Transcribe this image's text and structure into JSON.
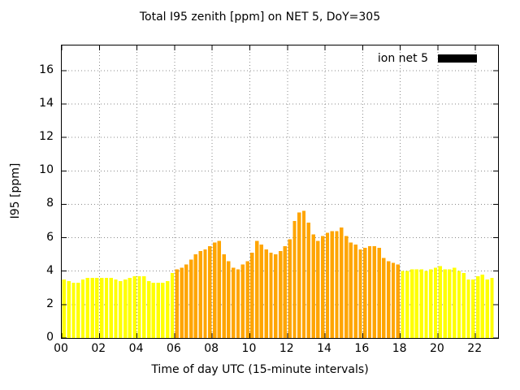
{
  "chart_data": {
    "type": "bar",
    "title": "Total I95 zenith [ppm] on NET 5, DoY=305",
    "xlabel": "Time of day UTC (15-minute intervals)",
    "ylabel": "I95 [ppm]",
    "xlim": [
      0,
      23.2
    ],
    "ylim": [
      0,
      17.5
    ],
    "x_tick_labels": [
      "00",
      "02",
      "04",
      "06",
      "08",
      "10",
      "12",
      "14",
      "16",
      "18",
      "20",
      "22"
    ],
    "x_tick_hours": [
      0,
      2,
      4,
      6,
      8,
      10,
      12,
      14,
      16,
      18,
      20,
      22
    ],
    "y_ticks": [
      0,
      2,
      4,
      6,
      8,
      10,
      12,
      14,
      16
    ],
    "grid": true,
    "legend_label": "ion net 5",
    "legend_swatch_color": "#000000",
    "legend_position": "top-right",
    "start_time": "00:00",
    "interval_minutes": 15,
    "bar_colors": {
      "night": "#ffff00",
      "day": "#ffa500"
    },
    "day_hours": [
      6.0,
      18.0
    ],
    "values": [
      3.5,
      3.4,
      3.3,
      3.3,
      3.5,
      3.6,
      3.6,
      3.6,
      3.6,
      3.6,
      3.6,
      3.5,
      3.4,
      3.5,
      3.6,
      3.7,
      3.7,
      3.7,
      3.4,
      3.3,
      3.3,
      3.3,
      3.4,
      3.9,
      4.1,
      4.2,
      4.4,
      4.7,
      5.0,
      5.2,
      5.3,
      5.5,
      5.7,
      5.8,
      5.0,
      4.6,
      4.2,
      4.1,
      4.4,
      4.6,
      5.1,
      5.8,
      5.6,
      5.3,
      5.1,
      5.0,
      5.2,
      5.5,
      5.9,
      7.0,
      7.5,
      7.6,
      6.9,
      6.2,
      5.8,
      6.1,
      6.3,
      6.4,
      6.4,
      6.6,
      6.1,
      5.7,
      5.6,
      5.3,
      5.4,
      5.5,
      5.5,
      5.4,
      4.8,
      4.6,
      4.5,
      4.4,
      4.0,
      4.0,
      4.1,
      4.1,
      4.1,
      4.0,
      4.1,
      4.2,
      4.3,
      4.1,
      4.1,
      4.2,
      4.0,
      3.9,
      3.5,
      3.5,
      3.7,
      3.8,
      3.5,
      3.6
    ]
  }
}
